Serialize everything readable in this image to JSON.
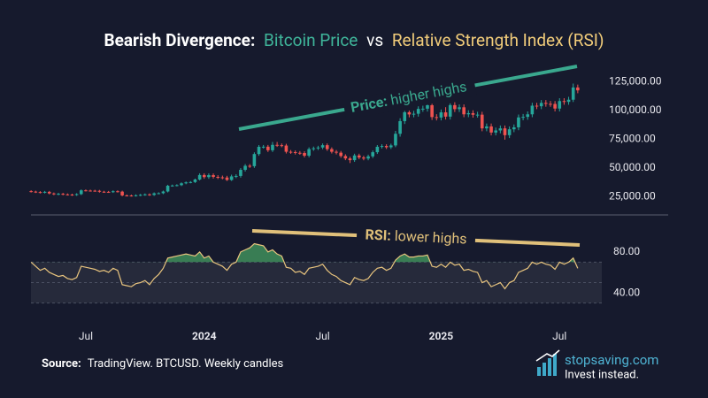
{
  "title_parts": [
    {
      "text": "Bearish Divergence:",
      "color": "#ffffff"
    },
    {
      "text": "Bitcoin Price",
      "color": "#3fb59a"
    },
    {
      "text": "vs",
      "color": "#ffffff"
    },
    {
      "text": "Relative Strength Index (RSI)",
      "color": "#f1cc7a"
    }
  ],
  "footer": {
    "source_label": "Source:",
    "source_text": "TradingView. BTCUSD. Weekly candles",
    "brand": "stopsaving.com",
    "tagline": "Invest instead."
  },
  "chart_data": [
    {
      "type": "candlestick",
      "up_color": "#26a69a",
      "down_color": "#ef5350",
      "xlim": [
        -1,
        121
      ],
      "ylim": [
        13000,
        142000
      ],
      "yticks": [
        {
          "value": 25000,
          "label": "25,000.00"
        },
        {
          "value": 50000,
          "label": "50,000.00"
        },
        {
          "value": 75000,
          "label": "75,000.00"
        },
        {
          "value": 100000,
          "label": "100,000.00"
        },
        {
          "value": 125000,
          "label": "125,000.00"
        }
      ],
      "annotation": {
        "bold": "Price:",
        "text": "higher highs",
        "color": "#3aa88e"
      },
      "open": [
        29800,
        29400,
        29000,
        28600,
        29200,
        27800,
        27100,
        27500,
        27000,
        26800,
        26500,
        27200,
        30500,
        30300,
        30200,
        30100,
        29300,
        29200,
        29100,
        29700,
        29400,
        26100,
        26000,
        25900,
        26200,
        26600,
        27000,
        26500,
        27900,
        28000,
        29500,
        34500,
        34700,
        35000,
        36600,
        37400,
        37700,
        39900,
        43800,
        42000,
        43700,
        42200,
        41800,
        41600,
        39500,
        42600,
        43000,
        48300,
        51800,
        51500,
        62000,
        68300,
        68400,
        65300,
        70000,
        69700,
        69400,
        64000,
        63700,
        63100,
        62900,
        60600,
        66300,
        67000,
        67700,
        69700,
        66300,
        64000,
        63200,
        60300,
        58200,
        56700,
        60800,
        59000,
        58100,
        60000,
        63600,
        68300,
        69000,
        67900,
        69500,
        79600,
        90600,
        98300,
        96400,
        97000,
        101200,
        101400,
        104400,
        94100,
        93700,
        98200,
        94500,
        104500,
        101000,
        102600,
        96500,
        97500,
        96100,
        96200,
        84300,
        86000,
        80700,
        82500,
        84300,
        78400,
        83500,
        85200,
        93800,
        94300,
        96500,
        104000,
        103500,
        106400,
        105600,
        105500,
        101500,
        108000,
        107300,
        109200,
        119800
      ],
      "high": [
        30600,
        30200,
        29800,
        30000,
        30000,
        28600,
        28300,
        28300,
        27800,
        27600,
        28000,
        31300,
        31300,
        31100,
        31000,
        30900,
        30100,
        30000,
        30500,
        30500,
        30200,
        26900,
        26800,
        27000,
        27400,
        27800,
        27800,
        28700,
        28800,
        30300,
        35300,
        35500,
        35800,
        37400,
        38200,
        38500,
        40700,
        45300,
        45300,
        45200,
        45200,
        43700,
        43300,
        43100,
        44100,
        44500,
        49800,
        53300,
        53300,
        63500,
        69800,
        69900,
        69900,
        72500,
        72500,
        71200,
        70900,
        65500,
        65200,
        64600,
        64400,
        67800,
        68500,
        69200,
        71200,
        71200,
        67800,
        65500,
        64700,
        61800,
        59700,
        62300,
        62300,
        60500,
        61500,
        65100,
        69800,
        70500,
        70500,
        71000,
        82100,
        93100,
        99500,
        99800,
        99500,
        103700,
        104000,
        108200,
        106900,
        96600,
        100700,
        102700,
        106000,
        107000,
        105100,
        105100,
        100000,
        100000,
        98700,
        98700,
        88500,
        88500,
        85000,
        86800,
        86800,
        86000,
        87700,
        96300,
        96800,
        99000,
        106500,
        106500,
        108900,
        108900,
        108100,
        108000,
        110500,
        110500,
        111700,
        123200,
        122300
      ],
      "low": [
        28600,
        28200,
        27800,
        27800,
        27000,
        26300,
        26300,
        26200,
        26000,
        25700,
        25700,
        26400,
        29500,
        29400,
        29300,
        28500,
        28400,
        28300,
        28300,
        28600,
        25300,
        25200,
        25100,
        25100,
        25400,
        25800,
        25700,
        25700,
        27100,
        27200,
        28700,
        33700,
        33900,
        34200,
        35800,
        36600,
        36900,
        39100,
        40500,
        40500,
        40700,
        40300,
        40100,
        38700,
        38700,
        41100,
        41500,
        46800,
        50000,
        50000,
        60500,
        66800,
        63800,
        63800,
        68200,
        67900,
        62500,
        62200,
        61600,
        61400,
        59100,
        59100,
        64800,
        65500,
        66200,
        64800,
        62500,
        61700,
        58800,
        56700,
        54200,
        55200,
        57500,
        56600,
        56600,
        58500,
        62100,
        66800,
        66400,
        66400,
        68000,
        77100,
        88100,
        93900,
        93900,
        94500,
        98700,
        98900,
        91600,
        91200,
        91200,
        92000,
        92000,
        98500,
        98500,
        94000,
        94000,
        93600,
        93600,
        81800,
        81800,
        78200,
        78200,
        80000,
        74500,
        75900,
        81000,
        82700,
        91300,
        91800,
        94000,
        101000,
        101000,
        103100,
        103000,
        99000,
        99000,
        104800,
        104800,
        107200,
        114800
      ],
      "close": [
        29400,
        29000,
        28600,
        29200,
        27800,
        27100,
        27500,
        27000,
        26800,
        26500,
        27200,
        30500,
        30300,
        30200,
        30100,
        29300,
        29200,
        29100,
        29700,
        29400,
        26100,
        26000,
        25900,
        26200,
        26600,
        27000,
        26500,
        27900,
        28000,
        29500,
        34500,
        34700,
        35000,
        36600,
        37400,
        37700,
        39900,
        43800,
        42000,
        43700,
        42200,
        41800,
        41600,
        39500,
        42600,
        43000,
        48300,
        51800,
        51500,
        62000,
        68300,
        68400,
        65300,
        70000,
        69700,
        69400,
        64000,
        63700,
        63100,
        62900,
        60600,
        66300,
        67000,
        67700,
        69700,
        66300,
        64000,
        63200,
        60300,
        58200,
        56700,
        60800,
        59000,
        58100,
        60000,
        63600,
        68300,
        69000,
        67900,
        69500,
        79600,
        90600,
        98300,
        96400,
        97000,
        101200,
        101400,
        104400,
        94100,
        93700,
        98200,
        94500,
        104500,
        101000,
        102600,
        96500,
        97500,
        96100,
        96200,
        84300,
        86000,
        80700,
        82500,
        84300,
        78400,
        83500,
        85200,
        93800,
        94300,
        96500,
        104000,
        103500,
        106400,
        105600,
        105500,
        101500,
        108000,
        107300,
        109200,
        119800,
        117300
      ]
    },
    {
      "type": "line",
      "color": "#e8c47e",
      "overbought_color": "#3f8f5c",
      "xlim": [
        -1,
        121
      ],
      "xticks": [
        {
          "value": 12,
          "label": "Jul"
        },
        {
          "value": 38,
          "label": "2024"
        },
        {
          "value": 64,
          "label": "Jul"
        },
        {
          "value": 90,
          "label": "2025"
        },
        {
          "value": 116,
          "label": "Jul"
        }
      ],
      "ylim": [
        28,
        98
      ],
      "yticks": [
        {
          "value": 40,
          "label": "40.00"
        },
        {
          "value": 80,
          "label": "80.00"
        }
      ],
      "band": [
        30,
        70
      ],
      "levels": [
        30,
        50,
        70
      ],
      "annotation": {
        "bold": "RSI:",
        "text": "lower highs",
        "color": "#e0c07a"
      },
      "values": [
        70,
        66,
        62,
        64,
        60,
        58,
        56,
        57,
        54,
        53,
        55,
        66,
        65,
        64,
        63,
        61,
        62,
        60,
        64,
        62,
        48,
        47,
        46,
        49,
        50,
        52,
        48,
        54,
        58,
        64,
        74,
        75,
        76,
        77,
        78,
        77,
        76,
        80,
        74,
        76,
        70,
        68,
        66,
        62,
        68,
        70,
        80,
        82,
        84,
        88,
        87,
        86,
        80,
        82,
        78,
        76,
        65,
        64,
        60,
        61,
        58,
        64,
        65,
        66,
        68,
        62,
        58,
        56,
        52,
        50,
        48,
        55,
        53,
        52,
        54,
        60,
        64,
        65,
        62,
        64,
        72,
        76,
        78,
        75,
        75,
        76,
        76,
        77,
        66,
        65,
        68,
        65,
        70,
        67,
        68,
        62,
        63,
        61,
        60,
        50,
        52,
        46,
        48,
        50,
        44,
        50,
        52,
        60,
        62,
        64,
        70,
        68,
        70,
        68,
        67,
        63,
        70,
        68,
        70,
        74,
        64
      ]
    }
  ]
}
